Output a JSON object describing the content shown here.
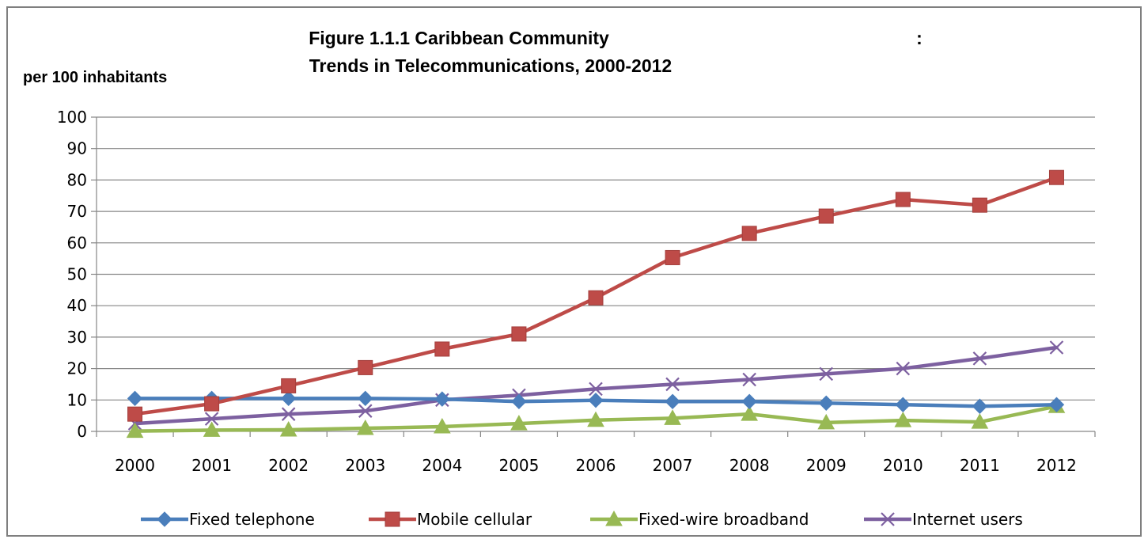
{
  "chart_data": {
    "type": "line",
    "title_line1": "Figure 1.1.1   Caribbean Community",
    "title_colon": ":",
    "title_line2": "Trends in Telecommunications, 2000-2012",
    "ylabel": "per 100 inhabitants",
    "xlabel": "",
    "categories": [
      "2000",
      "2001",
      "2002",
      "2003",
      "2004",
      "2005",
      "2006",
      "2007",
      "2008",
      "2009",
      "2010",
      "2011",
      "2012"
    ],
    "ylim": [
      0,
      100
    ],
    "yticks": [
      0,
      10,
      20,
      30,
      40,
      50,
      60,
      70,
      80,
      90,
      100
    ],
    "grid": true,
    "legend_position": "bottom",
    "series": [
      {
        "name": "Fixed telephone",
        "color": "#4a7ebb",
        "marker": "diamond",
        "values": [
          10.5,
          10.5,
          10.5,
          10.5,
          10.3,
          9.5,
          9.9,
          9.5,
          9.5,
          9.0,
          8.5,
          8.0,
          8.5
        ]
      },
      {
        "name": "Mobile cellular",
        "color": "#be4b48",
        "marker": "square",
        "values": [
          5.5,
          8.8,
          14.5,
          20.3,
          26.2,
          31.0,
          42.5,
          55.3,
          63.0,
          68.5,
          73.8,
          72.0,
          80.8
        ]
      },
      {
        "name": "Fixed-wire broadband",
        "color": "#98b954",
        "marker": "triangle",
        "values": [
          0.1,
          0.4,
          0.5,
          1.0,
          1.5,
          2.5,
          3.6,
          4.2,
          5.5,
          2.8,
          3.5,
          3.0,
          8.0
        ]
      },
      {
        "name": "Internet users",
        "color": "#7d60a0",
        "marker": "x",
        "values": [
          2.5,
          4.0,
          5.5,
          6.5,
          10.0,
          11.5,
          13.5,
          15.0,
          16.5,
          18.3,
          20.0,
          23.2,
          26.7
        ]
      }
    ]
  }
}
